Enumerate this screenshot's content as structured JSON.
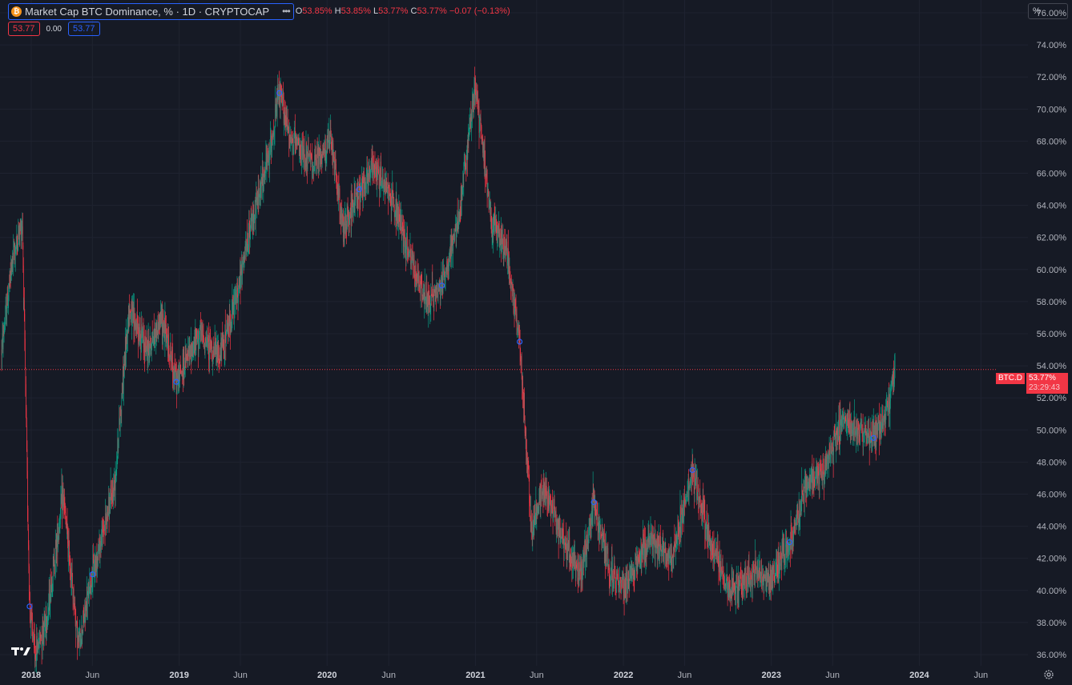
{
  "header": {
    "symbol_title": "Market Cap BTC Dominance, % · 1D · CRYPTOCAP",
    "logo_glyph": "₿",
    "more_glyph": "•••",
    "ohlc": {
      "open_label": "O",
      "open": "53.85%",
      "high_label": "H",
      "high": "53.85%",
      "low_label": "L",
      "low": "53.77%",
      "close_label": "C",
      "close": "53.77%",
      "change": "−0.07 (−0.13%)"
    },
    "pill_left": "53.77",
    "pill_mid": "0.00",
    "pill_right": "53.77"
  },
  "scale_mode": "%",
  "price_label": {
    "symbol": "BTC.D",
    "value": "53.77%",
    "countdown": "23:29:43"
  },
  "colors": {
    "background": "#161a25",
    "up": "#089981",
    "down": "#f23645",
    "grid": "#1f2330",
    "axis_text": "#b2b5be",
    "marker": "#2962ff"
  },
  "icons": {
    "logo": "tradingview-logo-icon",
    "settings": "gear-icon",
    "more": "more-dots-icon"
  },
  "chart_data": {
    "type": "candlestick",
    "title": "Market Cap BTC Dominance, % · 1D · CRYPTOCAP",
    "x_tick_labels": [
      "2018",
      "Jun",
      "2019",
      "Jun",
      "2020",
      "Jun",
      "2021",
      "Jun",
      "2022",
      "Jun",
      "2023",
      "Jun",
      "2024",
      "Jun"
    ],
    "x_tick_dates": [
      "2018-01-01",
      "2018-06-01",
      "2019-01-01",
      "2019-06-01",
      "2020-01-01",
      "2020-06-01",
      "2021-01-01",
      "2021-06-01",
      "2022-01-01",
      "2022-06-01",
      "2023-01-01",
      "2023-06-01",
      "2024-01-01",
      "2024-06-01"
    ],
    "y_tick_values": [
      36,
      38,
      40,
      42,
      44,
      46,
      48,
      50,
      52,
      54,
      56,
      58,
      60,
      62,
      64,
      66,
      68,
      70,
      72,
      74,
      76
    ],
    "y_tick_labels": [
      "36.00%",
      "38.00%",
      "40.00%",
      "42.00%",
      "44.00%",
      "46.00%",
      "48.00%",
      "50.00%",
      "52.00%",
      "54.00%",
      "56.00%",
      "58.00%",
      "60.00%",
      "62.00%",
      "64.00%",
      "66.00%",
      "68.00%",
      "70.00%",
      "72.00%",
      "74.00%",
      "76.00%"
    ],
    "ylim": [
      35.3,
      76.8
    ],
    "xlim": [
      "2017-10-16",
      "2024-09-25"
    ],
    "last_price": 53.77,
    "grid": true,
    "series_close_approx": [
      {
        "date": "2017-10-20",
        "close": 55.0
      },
      {
        "date": "2017-11-15",
        "close": 60.5
      },
      {
        "date": "2017-12-10",
        "close": 63.0
      },
      {
        "date": "2017-12-28",
        "close": 39.0
      },
      {
        "date": "2018-01-10",
        "close": 36.0
      },
      {
        "date": "2018-02-10",
        "close": 38.5
      },
      {
        "date": "2018-03-20",
        "close": 46.0
      },
      {
        "date": "2018-04-28",
        "close": 36.5
      },
      {
        "date": "2018-06-01",
        "close": 41.0
      },
      {
        "date": "2018-07-25",
        "close": 46.5
      },
      {
        "date": "2018-08-30",
        "close": 57.5
      },
      {
        "date": "2018-10-15",
        "close": 55.0
      },
      {
        "date": "2018-11-20",
        "close": 57.0
      },
      {
        "date": "2018-12-25",
        "close": 53.0
      },
      {
        "date": "2019-02-20",
        "close": 56.0
      },
      {
        "date": "2019-04-10",
        "close": 54.5
      },
      {
        "date": "2019-05-20",
        "close": 58.0
      },
      {
        "date": "2019-06-30",
        "close": 63.0
      },
      {
        "date": "2019-08-10",
        "close": 67.0
      },
      {
        "date": "2019-09-05",
        "close": 71.0
      },
      {
        "date": "2019-10-05",
        "close": 68.0
      },
      {
        "date": "2019-11-30",
        "close": 66.5
      },
      {
        "date": "2020-01-10",
        "close": 68.0
      },
      {
        "date": "2020-02-10",
        "close": 62.5
      },
      {
        "date": "2020-03-20",
        "close": 65.0
      },
      {
        "date": "2020-04-25",
        "close": 66.5
      },
      {
        "date": "2020-06-10",
        "close": 64.5
      },
      {
        "date": "2020-07-20",
        "close": 61.0
      },
      {
        "date": "2020-08-30",
        "close": 58.0
      },
      {
        "date": "2020-10-10",
        "close": 59.0
      },
      {
        "date": "2020-11-20",
        "close": 63.0
      },
      {
        "date": "2020-12-31",
        "close": 71.5
      },
      {
        "date": "2021-02-10",
        "close": 63.0
      },
      {
        "date": "2021-03-20",
        "close": 61.0
      },
      {
        "date": "2021-04-20",
        "close": 55.5
      },
      {
        "date": "2021-05-20",
        "close": 43.5
      },
      {
        "date": "2021-06-15",
        "close": 46.5
      },
      {
        "date": "2021-07-10",
        "close": 45.0
      },
      {
        "date": "2021-08-25",
        "close": 42.0
      },
      {
        "date": "2021-09-20",
        "close": 41.0
      },
      {
        "date": "2021-10-20",
        "close": 45.5
      },
      {
        "date": "2021-11-30",
        "close": 41.0
      },
      {
        "date": "2022-01-05",
        "close": 40.0
      },
      {
        "date": "2022-02-15",
        "close": 42.5
      },
      {
        "date": "2022-03-20",
        "close": 43.0
      },
      {
        "date": "2022-05-01",
        "close": 42.0
      },
      {
        "date": "2022-06-20",
        "close": 47.5
      },
      {
        "date": "2022-08-10",
        "close": 42.5
      },
      {
        "date": "2022-09-20",
        "close": 40.0
      },
      {
        "date": "2022-11-15",
        "close": 41.0
      },
      {
        "date": "2022-12-30",
        "close": 40.5
      },
      {
        "date": "2023-02-15",
        "close": 43.0
      },
      {
        "date": "2023-03-25",
        "close": 46.5
      },
      {
        "date": "2023-05-15",
        "close": 47.5
      },
      {
        "date": "2023-06-25",
        "close": 50.5
      },
      {
        "date": "2023-08-05",
        "close": 50.0
      },
      {
        "date": "2023-09-10",
        "close": 49.5
      },
      {
        "date": "2023-10-10",
        "close": 51.0
      },
      {
        "date": "2023-11-02",
        "close": 53.77
      }
    ]
  }
}
